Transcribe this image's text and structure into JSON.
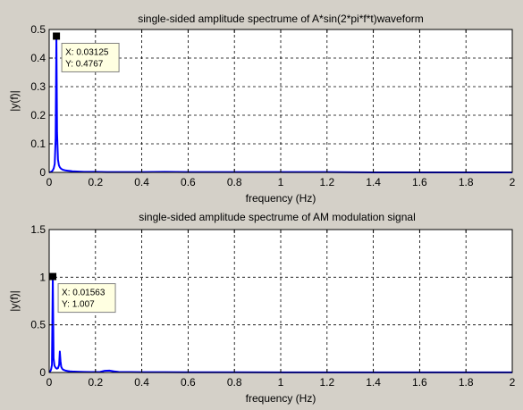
{
  "chart_data": [
    {
      "type": "line",
      "title": "single-sided amplitude spectrume of  A*sin(2*pi*f*t)waveform",
      "xlabel": "frequency (Hz)",
      "ylabel": "|y(f)|",
      "xlim": [
        0,
        2
      ],
      "ylim": [
        0,
        0.5
      ],
      "grid": true,
      "xticks": [
        0,
        0.2,
        0.4,
        0.6,
        0.8,
        1,
        1.2,
        1.4,
        1.6,
        1.8,
        2
      ],
      "xtick_labels": [
        "0",
        "0.2",
        "0.4",
        "0.6",
        "0.8",
        "1",
        "1.2",
        "1.4",
        "1.6",
        "1.8",
        "2"
      ],
      "yticks": [
        0,
        0.1,
        0.2,
        0.3,
        0.4,
        0.5
      ],
      "ytick_labels": [
        "0",
        "0.1",
        "0.2",
        "0.3",
        "0.4",
        "0.5"
      ],
      "line_color": "#0000ff",
      "series": [
        {
          "x": [
            0,
            0.004,
            0.008,
            0.012,
            0.016,
            0.02,
            0.024,
            0.028,
            0.03125,
            0.034,
            0.038,
            0.042,
            0.046,
            0.05,
            0.055,
            0.06,
            0.065,
            0.07,
            0.08,
            0.09,
            0.1,
            0.12,
            0.15,
            0.2,
            0.25,
            0.3,
            0.4,
            0.5,
            0.6,
            0.7,
            0.8,
            1.0,
            1.2,
            1.4,
            1.6,
            1.8,
            2.0
          ],
          "y": [
            0.0,
            0.001,
            0.002,
            0.004,
            0.008,
            0.015,
            0.03,
            0.12,
            0.4767,
            0.14,
            0.045,
            0.025,
            0.018,
            0.014,
            0.011,
            0.009,
            0.008,
            0.007,
            0.006,
            0.005,
            0.004,
            0.003,
            0.002,
            0.002,
            0.001,
            0.001,
            0.001,
            0.002,
            0.001,
            0.001,
            0.001,
            0.001,
            0.001,
            0.0,
            0.0,
            0.0,
            0.0
          ]
        }
      ],
      "datatip": {
        "x": 0.03125,
        "y": 0.4767,
        "x_label": "X: 0.03125",
        "y_label": "Y: 0.4767"
      }
    },
    {
      "type": "line",
      "title": "single-sided amplitude spectrume of AM modulation signal",
      "xlabel": "frequency (Hz)",
      "ylabel": "|y(f)|",
      "xlim": [
        0,
        2
      ],
      "ylim": [
        0,
        1.5
      ],
      "grid": true,
      "xticks": [
        0,
        0.2,
        0.4,
        0.6,
        0.8,
        1,
        1.2,
        1.4,
        1.6,
        1.8,
        2
      ],
      "xtick_labels": [
        "0",
        "0.2",
        "0.4",
        "0.6",
        "0.8",
        "1",
        "1.2",
        "1.4",
        "1.6",
        "1.8",
        "2"
      ],
      "yticks": [
        0,
        0.5,
        1,
        1.5
      ],
      "ytick_labels": [
        "0",
        "0.5",
        "1",
        "1.5"
      ],
      "line_color": "#0000ff",
      "series": [
        {
          "x": [
            0,
            0.004,
            0.008,
            0.012,
            0.01563,
            0.019,
            0.023,
            0.028,
            0.033,
            0.038,
            0.043,
            0.046,
            0.049,
            0.052,
            0.056,
            0.06,
            0.065,
            0.07,
            0.08,
            0.09,
            0.1,
            0.12,
            0.15,
            0.18,
            0.22,
            0.24,
            0.26,
            0.28,
            0.3,
            0.4,
            0.5,
            0.6,
            0.8,
            1.0,
            1.2,
            1.4,
            1.6,
            1.8,
            2.0
          ],
          "y": [
            0.0,
            0.01,
            0.03,
            0.08,
            1.007,
            0.15,
            0.07,
            0.05,
            0.04,
            0.045,
            0.08,
            0.22,
            0.12,
            0.06,
            0.04,
            0.03,
            0.025,
            0.02,
            0.015,
            0.012,
            0.01,
            0.008,
            0.006,
            0.005,
            0.006,
            0.018,
            0.02,
            0.012,
            0.006,
            0.004,
            0.003,
            0.002,
            0.002,
            0.001,
            0.001,
            0.001,
            0.001,
            0.001,
            0.001
          ]
        }
      ],
      "datatip": {
        "x": 0.01563,
        "y": 1.007,
        "x_label": "X: 0.01563",
        "y_label": "Y: 1.007"
      }
    }
  ]
}
